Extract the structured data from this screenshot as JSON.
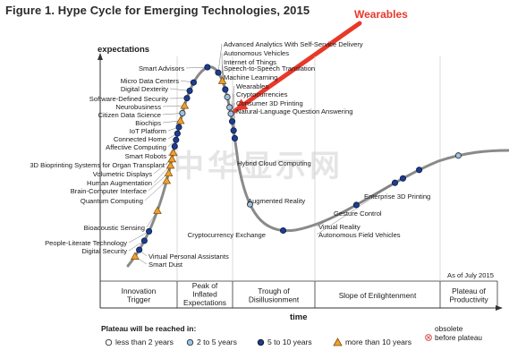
{
  "figure": {
    "title": "Figure 1. Hype Cycle for Emerging Technologies, 2015",
    "callout": "Wearables",
    "watermark": "中华显示网",
    "as_of": "As of July 2015"
  },
  "axes": {
    "y_label": "expectations",
    "x_label": "time"
  },
  "phases": [
    [
      "Innovation",
      "Trigger"
    ],
    [
      "Peak of",
      "Inflated",
      "Expectations"
    ],
    [
      "Trough of",
      "Disillusionment"
    ],
    [
      "Slope of Enlightenment"
    ],
    [
      "Plateau of",
      "Productivity"
    ]
  ],
  "legend": {
    "title": "Plateau will be reached in:",
    "items": [
      {
        "label": "less than 2 years",
        "marker": "white-circle"
      },
      {
        "label": "2 to 5 years",
        "marker": "lightblue-circle"
      },
      {
        "label": "5 to 10 years",
        "marker": "darkblue-circle"
      },
      {
        "label": "more than 10 years",
        "marker": "orange-triangle"
      }
    ],
    "obsolete": [
      "obsolete",
      "before plateau"
    ]
  },
  "colors": {
    "curve": "#8a8a8a",
    "callout_red": "#e8382a",
    "dark_blue": "#1d3d8f",
    "light_blue": "#9dc3e6",
    "orange": "#f0a030",
    "obsolete_red": "#d9534f"
  },
  "chart_data": {
    "type": "scatter",
    "title": "Figure 1. Hype Cycle for Emerging Technologies, 2015",
    "xlabel": "time",
    "ylabel": "expectations",
    "technologies": [
      {
        "name": "Advanced Analytics With Self-Service Delivery",
        "plateau": "5 to 10 years",
        "phase": "Peak of Inflated Expectations"
      },
      {
        "name": "Autonomous Vehicles",
        "plateau": "more than 10 years",
        "phase": "Peak of Inflated Expectations"
      },
      {
        "name": "Internet of Things",
        "plateau": "5 to 10 years",
        "phase": "Peak of Inflated Expectations"
      },
      {
        "name": "Speech-to-Speech Translation",
        "plateau": "2 to 5 years",
        "phase": "Peak of Inflated Expectations"
      },
      {
        "name": "Machine Learning",
        "plateau": "2 to 5 years",
        "phase": "Peak of Inflated Expectations"
      },
      {
        "name": "Wearables",
        "plateau": "2 to 5 years",
        "phase": "Peak of Inflated Expectations"
      },
      {
        "name": "Cryptocurrencies",
        "plateau": "5 to 10 years",
        "phase": "Peak of Inflated Expectations"
      },
      {
        "name": "Consumer 3D Printing",
        "plateau": "5 to 10 years",
        "phase": "Peak of Inflated Expectations"
      },
      {
        "name": "Natural-Language Question Answering",
        "plateau": "5 to 10 years",
        "phase": "Peak of Inflated Expectations"
      },
      {
        "name": "Smart Advisors",
        "plateau": "5 to 10 years",
        "phase": "Peak of Inflated Expectations"
      },
      {
        "name": "Micro Data Centers",
        "plateau": "5 to 10 years",
        "phase": "Innovation Trigger"
      },
      {
        "name": "Digital Dexterity",
        "plateau": "5 to 10 years",
        "phase": "Innovation Trigger"
      },
      {
        "name": "Software-Defined Security",
        "plateau": "5 to 10 years",
        "phase": "Innovation Trigger"
      },
      {
        "name": "Neurobusiness",
        "plateau": "more than 10 years",
        "phase": "Innovation Trigger"
      },
      {
        "name": "Citizen Data Science",
        "plateau": "2 to 5 years",
        "phase": "Innovation Trigger"
      },
      {
        "name": "Biochips",
        "plateau": "more than 10 years",
        "phase": "Innovation Trigger"
      },
      {
        "name": "IoT Platform",
        "plateau": "5 to 10 years",
        "phase": "Innovation Trigger"
      },
      {
        "name": "Connected Home",
        "plateau": "5 to 10 years",
        "phase": "Innovation Trigger"
      },
      {
        "name": "Affective Computing",
        "plateau": "5 to 10 years",
        "phase": "Innovation Trigger"
      },
      {
        "name": "Smart Robots",
        "plateau": "5 to 10 years",
        "phase": "Innovation Trigger"
      },
      {
        "name": "3D Bioprinting Systems for Organ Transplant",
        "plateau": "more than 10 years",
        "phase": "Innovation Trigger"
      },
      {
        "name": "Volumetric Displays",
        "plateau": "more than 10 years",
        "phase": "Innovation Trigger"
      },
      {
        "name": "Human Augmentation",
        "plateau": "more than 10 years",
        "phase": "Innovation Trigger"
      },
      {
        "name": "Brain-Computer Interface",
        "plateau": "more than 10 years",
        "phase": "Innovation Trigger"
      },
      {
        "name": "Quantum Computing",
        "plateau": "more than 10 years",
        "phase": "Innovation Trigger"
      },
      {
        "name": "Bioacoustic Sensing",
        "plateau": "more than 10 years",
        "phase": "Innovation Trigger"
      },
      {
        "name": "People-Literate Technology",
        "plateau": "5 to 10 years",
        "phase": "Innovation Trigger"
      },
      {
        "name": "Digital Security",
        "plateau": "5 to 10 years",
        "phase": "Innovation Trigger"
      },
      {
        "name": "Virtual Personal Assistants",
        "plateau": "5 to 10 years",
        "phase": "Innovation Trigger"
      },
      {
        "name": "Smart Dust",
        "plateau": "more than 10 years",
        "phase": "Innovation Trigger"
      },
      {
        "name": "Hybrid Cloud Computing",
        "plateau": "2 to 5 years",
        "phase": "Trough of Disillusionment"
      },
      {
        "name": "Augmented Reality",
        "plateau": "5 to 10 years",
        "phase": "Trough of Disillusionment"
      },
      {
        "name": "Cryptocurrency Exchange",
        "plateau": "5 to 10 years",
        "phase": "Trough of Disillusionment"
      },
      {
        "name": "Virtual Reality",
        "plateau": "5 to 10 years",
        "phase": "Slope of Enlightenment"
      },
      {
        "name": "Autonomous Field Vehicles",
        "plateau": "5 to 10 years",
        "phase": "Slope of Enlightenment"
      },
      {
        "name": "Gesture Control",
        "plateau": "5 to 10 years",
        "phase": "Slope of Enlightenment"
      },
      {
        "name": "Enterprise 3D Printing",
        "plateau": "2 to 5 years",
        "phase": "Slope of Enlightenment"
      }
    ]
  }
}
